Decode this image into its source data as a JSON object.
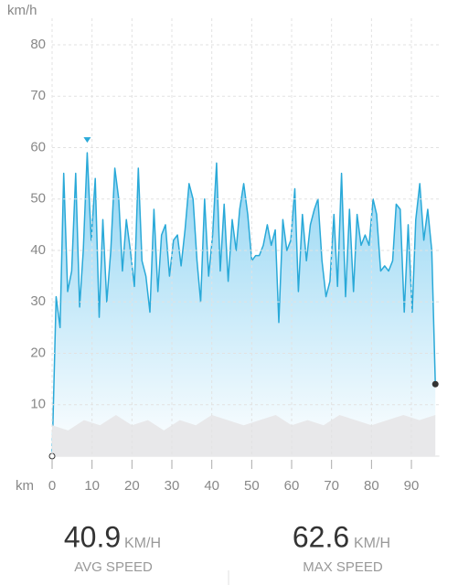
{
  "chart_data": {
    "type": "line",
    "y_label": "km/h",
    "x_label": "km",
    "xlim": [
      0,
      97
    ],
    "ylim": [
      0,
      80
    ],
    "xticks": [
      0,
      10,
      20,
      30,
      40,
      50,
      60,
      70,
      80,
      90
    ],
    "yticks": [
      10,
      20,
      30,
      40,
      50,
      60,
      70,
      80
    ],
    "grid": true,
    "series": [
      {
        "color": "#29a9d8",
        "x": [
          0,
          1,
          2,
          2.9,
          3.9,
          4.9,
          5.9,
          6.9,
          7.8,
          8.8,
          9.8,
          10.8,
          11.8,
          12.7,
          13.7,
          14.7,
          15.7,
          16.7,
          17.6,
          18.6,
          19.6,
          20.6,
          21.6,
          22.5,
          23.5,
          24.5,
          25.5,
          26.5,
          27.4,
          28.4,
          29.4,
          30.4,
          31.4,
          32.3,
          33.3,
          34.3,
          35.3,
          36.3,
          37.2,
          38.2,
          39.2,
          40.2,
          41.2,
          42.1,
          43.1,
          44.1,
          45.1,
          46.1,
          47,
          48,
          49,
          50,
          51,
          51.9,
          52.9,
          53.9,
          54.9,
          55.9,
          56.8,
          57.8,
          58.8,
          59.8,
          60.8,
          61.7,
          62.7,
          63.7,
          64.7,
          65.7,
          66.6,
          67.6,
          68.6,
          69.6,
          70.6,
          71.5,
          72.5,
          73.5,
          74.5,
          75.5,
          76.4,
          77.4,
          78.4,
          79.4,
          80.4,
          81.3,
          82.3,
          83.3,
          84.3,
          85.3,
          86.2,
          87.2,
          88.2,
          89.2,
          90.2,
          91.1,
          92.1,
          93.1,
          94.1,
          95.1,
          96
        ],
        "values": [
          0,
          31,
          25,
          55,
          32,
          36,
          55,
          29,
          40,
          59,
          42,
          54,
          27,
          46,
          30,
          40,
          56,
          50,
          36,
          46,
          40,
          33,
          56,
          38,
          35,
          28,
          48,
          32,
          43,
          45,
          35,
          42,
          43,
          37,
          44,
          53,
          50,
          38,
          30,
          50,
          35,
          43,
          57,
          36,
          49,
          34,
          46,
          40,
          48,
          53,
          47,
          38,
          39,
          39,
          41,
          45,
          41,
          44,
          26,
          46,
          40,
          42,
          52,
          32,
          47,
          38,
          45,
          48,
          50,
          38,
          31,
          34,
          47,
          33,
          55,
          31,
          48,
          32,
          47,
          41,
          43,
          41,
          50,
          47,
          36,
          37,
          36,
          38,
          49,
          48,
          28,
          45,
          28,
          46,
          53,
          42,
          48,
          40,
          14
        ]
      },
      {
        "color": "#e8e8ea",
        "x": [
          0,
          4,
          8,
          12,
          16,
          20,
          24,
          28,
          32,
          36,
          40,
          44,
          48,
          52,
          56,
          60,
          64,
          68,
          72,
          76,
          80,
          84,
          88,
          92,
          96
        ],
        "values": [
          6,
          5,
          7,
          6,
          8,
          6,
          7,
          5,
          7,
          6,
          8,
          7,
          6,
          7,
          8,
          6,
          7,
          6,
          8,
          7,
          6,
          7,
          8,
          7,
          8
        ]
      }
    ]
  },
  "stats": [
    {
      "value": 40.9,
      "unit": "KM/H",
      "label": "AVG SPEED"
    },
    {
      "value": 62.6,
      "unit": "KM/H",
      "label": "MAX SPEED"
    }
  ]
}
